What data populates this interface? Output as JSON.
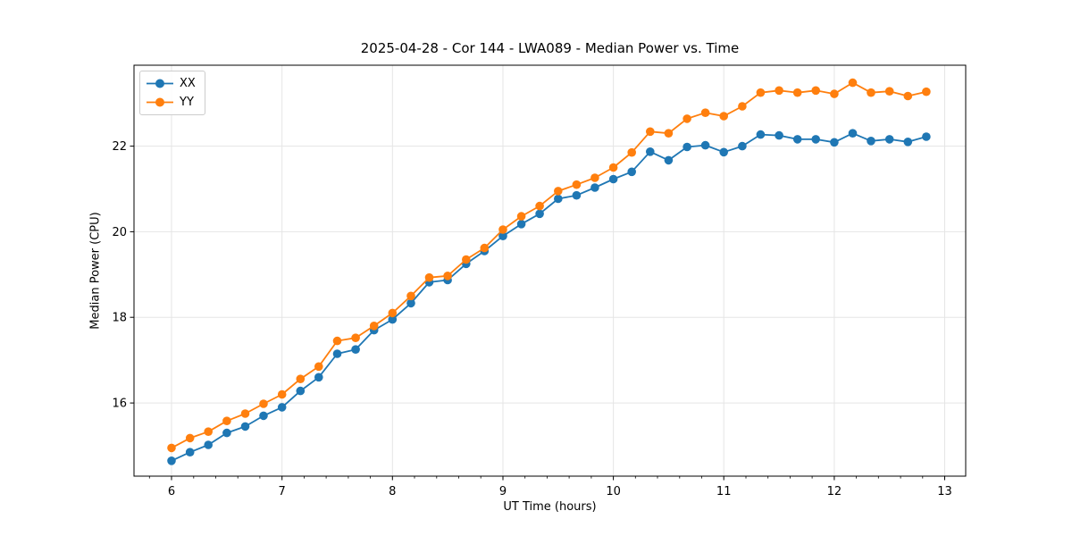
{
  "chart_data": {
    "type": "line",
    "title": "2025-04-28 - Cor 144 - LWA089 - Median Power vs. Time",
    "xlabel": "UT Time (hours)",
    "ylabel": "Median Power (CPU)",
    "xlim": [
      5.66,
      13.19
    ],
    "ylim": [
      14.29,
      23.89
    ],
    "x_major_ticks": [
      6,
      7,
      8,
      9,
      10,
      11,
      12,
      13
    ],
    "x_minor_tick_step": 0.2,
    "y_major_ticks": [
      16,
      18,
      20,
      22
    ],
    "grid": true,
    "legend_position": "upper left",
    "x": [
      6.0,
      6.167,
      6.333,
      6.5,
      6.667,
      6.833,
      7.0,
      7.167,
      7.333,
      7.5,
      7.667,
      7.833,
      8.0,
      8.167,
      8.333,
      8.5,
      8.667,
      8.833,
      9.0,
      9.167,
      9.333,
      9.5,
      9.667,
      9.833,
      10.0,
      10.167,
      10.333,
      10.5,
      10.667,
      10.833,
      11.0,
      11.167,
      11.333,
      11.5,
      11.667,
      11.833,
      12.0,
      12.167,
      12.333,
      12.5,
      12.667,
      12.833
    ],
    "series": [
      {
        "name": "XX",
        "color": "#1f77b4",
        "values": [
          14.65,
          14.85,
          15.02,
          15.3,
          15.45,
          15.7,
          15.9,
          16.28,
          16.6,
          17.15,
          17.25,
          17.7,
          17.95,
          18.33,
          18.82,
          18.87,
          19.25,
          19.55,
          19.9,
          20.18,
          20.42,
          20.77,
          20.85,
          21.03,
          21.23,
          21.4,
          21.87,
          21.67,
          21.98,
          22.02,
          21.86,
          22.0,
          22.27,
          22.25,
          22.16,
          22.16,
          22.09,
          22.3,
          22.12,
          22.16,
          22.1,
          22.22
        ]
      },
      {
        "name": "YY",
        "color": "#ff7f0e",
        "values": [
          14.95,
          15.18,
          15.33,
          15.58,
          15.75,
          15.98,
          16.2,
          16.56,
          16.85,
          17.45,
          17.52,
          17.8,
          18.1,
          18.5,
          18.93,
          18.97,
          19.35,
          19.62,
          20.05,
          20.36,
          20.6,
          20.95,
          21.1,
          21.26,
          21.5,
          21.85,
          22.34,
          22.3,
          22.64,
          22.78,
          22.7,
          22.93,
          23.25,
          23.3,
          23.25,
          23.3,
          23.22,
          23.48,
          23.25,
          23.28,
          23.17,
          23.27
        ]
      }
    ],
    "styles": {
      "grid_color": "#e5e5e5",
      "spine_color": "#000000",
      "tick_label_color": "#000000",
      "background": "#ffffff",
      "line_width": 1.8,
      "marker_radius": 4.8
    }
  }
}
